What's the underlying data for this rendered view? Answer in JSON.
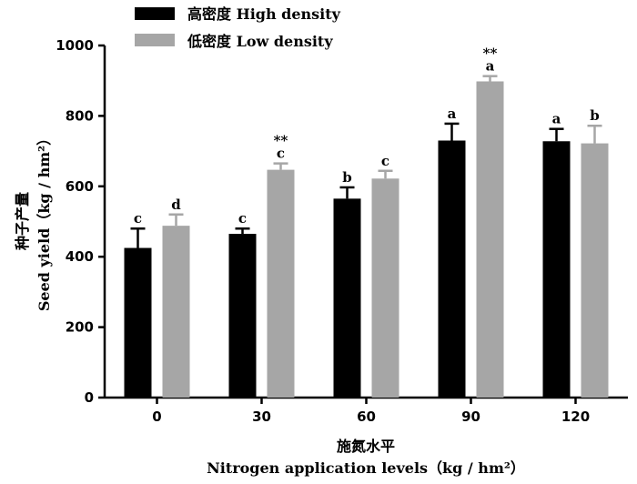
{
  "chart_data": {
    "type": "bar",
    "categories": [
      "0",
      "30",
      "60",
      "90",
      "120"
    ],
    "series": [
      {
        "name": "高密度  High density",
        "color": "#000000",
        "values": [
          425,
          465,
          565,
          730,
          728
        ],
        "errors": [
          55,
          15,
          32,
          48,
          35
        ],
        "letters": [
          "c",
          "c",
          "b",
          "a",
          "a"
        ],
        "marks": [
          "",
          "",
          "",
          "",
          ""
        ]
      },
      {
        "name": "低密度  Low density",
        "color": "#a6a6a6",
        "values": [
          488,
          647,
          622,
          898,
          722
        ],
        "errors": [
          32,
          18,
          22,
          15,
          50
        ],
        "letters": [
          "d",
          "c",
          "c",
          "a",
          "b"
        ],
        "marks": [
          "",
          "**",
          "",
          "**",
          ""
        ]
      }
    ],
    "ylim": [
      0,
      1000
    ],
    "yticks": [
      0,
      200,
      400,
      600,
      800,
      1000
    ],
    "ylabel_cn": "种子产量",
    "ylabel_en": "Seed yield（kg / hm²）",
    "xlabel_cn": "施氮水平",
    "xlabel_en": "Nitrogen application levels（kg / hm²）"
  }
}
